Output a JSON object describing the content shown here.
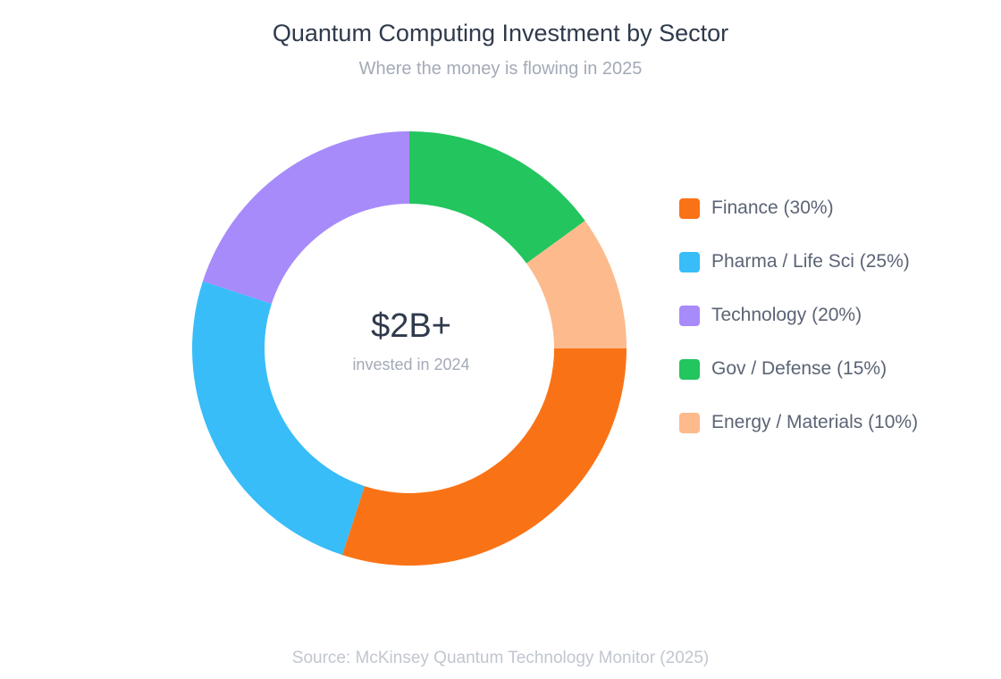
{
  "chart_data": {
    "type": "pie",
    "title": "Quantum Computing Investment by Sector",
    "subtitle": "Where the money is flowing in 2025",
    "center_value": "$2B+",
    "center_caption": "invested in 2024",
    "source": "Source: McKinsey Quantum Technology Monitor (2025)",
    "legend_position": "right",
    "slices": [
      {
        "label": "Finance (30%)",
        "value": 30,
        "color": "#f97316"
      },
      {
        "label": "Pharma / Life Sci (25%)",
        "value": 25,
        "color": "#38bdf8"
      },
      {
        "label": "Technology (20%)",
        "value": 20,
        "color": "#a78bfa"
      },
      {
        "label": "Gov / Defense (15%)",
        "value": 15,
        "color": "#22c55e"
      },
      {
        "label": "Energy / Materials (10%)",
        "value": 10,
        "color": "#fdba8c"
      }
    ]
  }
}
